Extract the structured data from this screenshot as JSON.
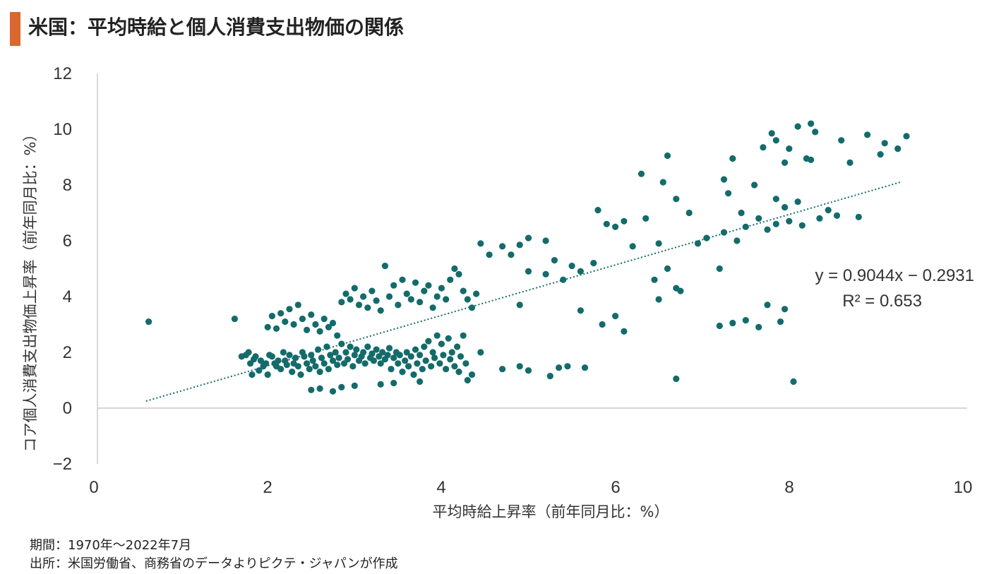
{
  "title": "米国：平均時給と個人消費支出物価の関係",
  "colors": {
    "accent": "#d9672f",
    "point": "#146b6b",
    "negative_tick": "#c00000"
  },
  "footnotes": {
    "period": "期間：1970年～2022年7月",
    "source": "出所：米国労働省、商務省のデータよりピクテ・ジャパンが作成"
  },
  "chart_data": {
    "type": "scatter",
    "title": "米国：平均時給と個人消費支出物価の関係",
    "xlabel": "平均時給上昇率（前年同月比：%）",
    "ylabel": "コア個人消費支出物価上昇率（前年同月比：%）",
    "xlim": [
      0,
      10
    ],
    "ylim": [
      -2,
      12
    ],
    "x_ticks": [
      "0",
      "2",
      "4",
      "6",
      "8",
      "10"
    ],
    "y_ticks": [
      "−2",
      "0",
      "2",
      "4",
      "6",
      "8",
      "10",
      "12"
    ],
    "grid": false,
    "legend": "none",
    "trendline": {
      "slope": 0.9044,
      "intercept": -0.2931,
      "x_range": [
        0.6,
        9.3
      ],
      "style": "dotted"
    },
    "equation_text": "y = 0.9044x − 0.2931",
    "r2_text": "R² = 0.653",
    "series": [
      {
        "points": [
          [
            0.63,
            3.1
          ],
          [
            1.62,
            3.2
          ],
          [
            1.7,
            1.85
          ],
          [
            1.75,
            1.9
          ],
          [
            1.78,
            2.0
          ],
          [
            1.8,
            1.6
          ],
          [
            1.82,
            1.2
          ],
          [
            1.84,
            1.75
          ],
          [
            1.86,
            1.85
          ],
          [
            1.9,
            1.35
          ],
          [
            1.92,
            1.7
          ],
          [
            1.95,
            1.5
          ],
          [
            1.98,
            1.6
          ],
          [
            2.0,
            1.2
          ],
          [
            2.02,
            1.9
          ],
          [
            2.05,
            1.85
          ],
          [
            2.08,
            1.6
          ],
          [
            2.1,
            1.5
          ],
          [
            2.12,
            1.7
          ],
          [
            2.15,
            1.4
          ],
          [
            2.18,
            2.0
          ],
          [
            2.2,
            1.7
          ],
          [
            2.22,
            1.55
          ],
          [
            2.25,
            1.9
          ],
          [
            2.28,
            1.3
          ],
          [
            2.3,
            1.6
          ],
          [
            2.32,
            1.8
          ],
          [
            2.35,
            1.5
          ],
          [
            2.38,
            1.2
          ],
          [
            2.4,
            2.0
          ],
          [
            2.42,
            1.85
          ],
          [
            2.45,
            1.6
          ],
          [
            2.48,
            1.4
          ],
          [
            2.5,
            1.9
          ],
          [
            2.52,
            1.7
          ],
          [
            2.55,
            1.5
          ],
          [
            2.58,
            2.1
          ],
          [
            2.6,
            1.3
          ],
          [
            2.62,
            1.8
          ],
          [
            2.65,
            1.6
          ],
          [
            2.68,
            2.2
          ],
          [
            2.7,
            1.4
          ],
          [
            2.72,
            1.9
          ],
          [
            2.75,
            1.7
          ],
          [
            2.78,
            2.0
          ],
          [
            2.8,
            1.55
          ],
          [
            2.82,
            1.8
          ],
          [
            2.85,
            2.3
          ],
          [
            2.88,
            1.6
          ],
          [
            2.9,
            2.0
          ],
          [
            2.92,
            1.75
          ],
          [
            2.95,
            2.2
          ],
          [
            2.98,
            1.5
          ],
          [
            3.0,
            1.9
          ],
          [
            3.02,
            2.1
          ],
          [
            3.05,
            1.7
          ],
          [
            3.08,
            1.85
          ],
          [
            3.1,
            2.0
          ],
          [
            3.12,
            1.6
          ],
          [
            3.15,
            2.2
          ],
          [
            3.18,
            1.8
          ],
          [
            3.2,
            1.95
          ],
          [
            3.22,
            1.7
          ],
          [
            3.25,
            2.1
          ],
          [
            3.28,
            1.85
          ],
          [
            3.3,
            1.6
          ],
          [
            3.32,
            2.0
          ],
          [
            3.35,
            1.75
          ],
          [
            3.38,
            1.9
          ],
          [
            3.4,
            2.15
          ],
          [
            3.42,
            1.4
          ],
          [
            3.45,
            1.8
          ],
          [
            3.48,
            2.0
          ],
          [
            3.5,
            1.6
          ],
          [
            3.52,
            1.9
          ],
          [
            3.55,
            1.3
          ],
          [
            3.58,
            1.7
          ],
          [
            3.6,
            2.0
          ],
          [
            3.62,
            1.5
          ],
          [
            3.65,
            1.85
          ],
          [
            3.68,
            1.2
          ],
          [
            3.7,
            2.1
          ],
          [
            3.72,
            1.6
          ],
          [
            3.75,
            1.9
          ],
          [
            3.78,
            1.4
          ],
          [
            3.8,
            2.2
          ],
          [
            3.82,
            1.7
          ],
          [
            3.85,
            2.4
          ],
          [
            3.88,
            1.5
          ],
          [
            3.9,
            2.0
          ],
          [
            3.92,
            1.8
          ],
          [
            3.95,
            2.6
          ],
          [
            3.98,
            1.6
          ],
          [
            4.0,
            2.3
          ],
          [
            4.02,
            1.9
          ],
          [
            4.05,
            1.4
          ],
          [
            4.08,
            2.5
          ],
          [
            4.1,
            1.75
          ],
          [
            4.12,
            2.0
          ],
          [
            4.15,
            1.5
          ],
          [
            4.18,
            2.2
          ],
          [
            4.2,
            1.3
          ],
          [
            4.22,
            1.85
          ],
          [
            4.25,
            2.6
          ],
          [
            4.28,
            1.6
          ],
          [
            4.3,
            1.0
          ],
          [
            4.35,
            1.2
          ],
          [
            4.45,
            2.0
          ],
          [
            2.0,
            2.9
          ],
          [
            2.05,
            3.3
          ],
          [
            2.1,
            2.85
          ],
          [
            2.15,
            3.4
          ],
          [
            2.2,
            3.1
          ],
          [
            2.25,
            3.55
          ],
          [
            2.3,
            3.0
          ],
          [
            2.35,
            3.7
          ],
          [
            2.4,
            3.2
          ],
          [
            2.45,
            2.8
          ],
          [
            2.5,
            3.35
          ],
          [
            2.55,
            3.0
          ],
          [
            2.6,
            2.75
          ],
          [
            2.65,
            3.2
          ],
          [
            2.7,
            2.9
          ],
          [
            2.75,
            3.05
          ],
          [
            2.8,
            2.6
          ],
          [
            2.85,
            3.8
          ],
          [
            2.9,
            4.1
          ],
          [
            2.95,
            3.9
          ],
          [
            3.0,
            4.3
          ],
          [
            3.05,
            3.7
          ],
          [
            3.1,
            4.0
          ],
          [
            3.15,
            3.6
          ],
          [
            3.2,
            4.2
          ],
          [
            3.25,
            3.85
          ],
          [
            3.3,
            3.5
          ],
          [
            3.35,
            5.1
          ],
          [
            3.4,
            4.0
          ],
          [
            3.45,
            4.4
          ],
          [
            3.5,
            3.7
          ],
          [
            3.55,
            4.6
          ],
          [
            3.6,
            4.1
          ],
          [
            3.65,
            3.9
          ],
          [
            3.7,
            4.5
          ],
          [
            3.75,
            3.8
          ],
          [
            3.8,
            4.2
          ],
          [
            3.85,
            4.4
          ],
          [
            3.9,
            3.6
          ],
          [
            3.95,
            4.0
          ],
          [
            4.0,
            4.3
          ],
          [
            4.05,
            3.9
          ],
          [
            4.1,
            4.6
          ],
          [
            4.15,
            5.0
          ],
          [
            4.2,
            4.8
          ],
          [
            4.25,
            4.2
          ],
          [
            4.3,
            3.9
          ],
          [
            4.35,
            3.6
          ],
          [
            4.4,
            4.1
          ],
          [
            2.5,
            0.65
          ],
          [
            2.6,
            0.7
          ],
          [
            2.75,
            0.6
          ],
          [
            2.85,
            0.75
          ],
          [
            3.0,
            0.8
          ],
          [
            3.3,
            0.85
          ],
          [
            3.45,
            0.9
          ],
          [
            3.75,
            0.95
          ],
          [
            4.45,
            5.9
          ],
          [
            4.55,
            5.5
          ],
          [
            4.7,
            5.8
          ],
          [
            4.8,
            5.5
          ],
          [
            4.9,
            5.85
          ],
          [
            5.0,
            6.1
          ],
          [
            5.2,
            6.0
          ],
          [
            5.0,
            4.9
          ],
          [
            4.9,
            3.7
          ],
          [
            4.7,
            1.4
          ],
          [
            4.9,
            1.5
          ],
          [
            5.0,
            1.35
          ],
          [
            5.25,
            1.15
          ],
          [
            5.35,
            1.45
          ],
          [
            5.45,
            1.5
          ],
          [
            5.65,
            1.45
          ],
          [
            5.3,
            5.3
          ],
          [
            5.5,
            5.1
          ],
          [
            5.2,
            4.8
          ],
          [
            5.4,
            4.6
          ],
          [
            5.6,
            4.9
          ],
          [
            5.75,
            5.2
          ],
          [
            5.8,
            7.1
          ],
          [
            5.9,
            6.6
          ],
          [
            6.0,
            6.5
          ],
          [
            6.1,
            6.7
          ],
          [
            6.2,
            5.8
          ],
          [
            6.35,
            6.8
          ],
          [
            6.5,
            5.9
          ],
          [
            6.6,
            9.05
          ],
          [
            6.7,
            7.5
          ],
          [
            6.85,
            7.0
          ],
          [
            6.3,
            8.4
          ],
          [
            6.55,
            8.1
          ],
          [
            6.1,
            2.75
          ],
          [
            6.0,
            3.3
          ],
          [
            5.85,
            3.0
          ],
          [
            5.6,
            3.5
          ],
          [
            6.5,
            3.9
          ],
          [
            6.7,
            4.3
          ],
          [
            6.45,
            4.6
          ],
          [
            6.6,
            5.0
          ],
          [
            6.75,
            4.2
          ],
          [
            6.95,
            5.9
          ],
          [
            7.05,
            6.1
          ],
          [
            7.25,
            6.3
          ],
          [
            7.4,
            6.0
          ],
          [
            7.5,
            6.5
          ],
          [
            7.65,
            6.8
          ],
          [
            7.75,
            6.4
          ],
          [
            7.85,
            6.6
          ],
          [
            8.0,
            6.7
          ],
          [
            8.15,
            6.55
          ],
          [
            8.35,
            6.8
          ],
          [
            8.55,
            6.9
          ],
          [
            8.8,
            6.85
          ],
          [
            7.3,
            7.7
          ],
          [
            7.45,
            7.0
          ],
          [
            7.6,
            8.0
          ],
          [
            7.85,
            7.5
          ],
          [
            7.95,
            7.2
          ],
          [
            8.1,
            7.4
          ],
          [
            8.25,
            8.9
          ],
          [
            8.45,
            7.1
          ],
          [
            8.7,
            8.8
          ],
          [
            8.9,
            9.8
          ],
          [
            9.05,
            9.1
          ],
          [
            9.25,
            9.3
          ],
          [
            9.35,
            9.75
          ],
          [
            9.1,
            9.5
          ],
          [
            8.6,
            9.6
          ],
          [
            8.3,
            9.9
          ],
          [
            8.1,
            10.1
          ],
          [
            8.25,
            10.2
          ],
          [
            8.0,
            9.3
          ],
          [
            7.85,
            9.6
          ],
          [
            7.8,
            9.85
          ],
          [
            7.95,
            8.8
          ],
          [
            8.2,
            8.95
          ],
          [
            7.7,
            9.35
          ],
          [
            7.35,
            8.95
          ],
          [
            7.25,
            8.2
          ],
          [
            7.2,
            2.95
          ],
          [
            7.35,
            3.05
          ],
          [
            7.5,
            3.15
          ],
          [
            7.65,
            2.9
          ],
          [
            7.75,
            3.7
          ],
          [
            7.95,
            3.55
          ],
          [
            7.9,
            3.1
          ],
          [
            6.7,
            1.05
          ],
          [
            8.05,
            0.95
          ],
          [
            7.2,
            5.0
          ]
        ]
      }
    ]
  }
}
